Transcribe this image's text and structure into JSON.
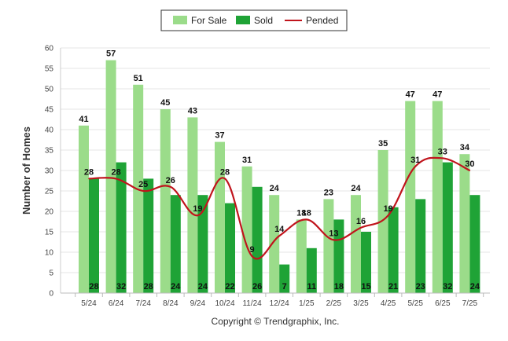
{
  "chart_data": {
    "type": "bar",
    "ylabel": "Number of Homes",
    "xlabel": "",
    "ylim": [
      0,
      60
    ],
    "yticks": [
      "0",
      "5",
      "10",
      "15",
      "20",
      "25",
      "30",
      "35",
      "40",
      "45",
      "50",
      "55",
      "60"
    ],
    "grid": true,
    "legend_position": "top-center",
    "categories": [
      "5/24",
      "6/24",
      "7/24",
      "8/24",
      "9/24",
      "10/24",
      "11/24",
      "12/24",
      "1/25",
      "2/25",
      "3/25",
      "4/25",
      "5/25",
      "6/25",
      "7/25"
    ],
    "series": [
      {
        "name": "For Sale",
        "kind": "bar",
        "color": "#9bdc8a",
        "values": [
          41,
          57,
          51,
          45,
          43,
          37,
          31,
          24,
          18,
          23,
          24,
          35,
          47,
          47,
          34
        ]
      },
      {
        "name": "Sold",
        "kind": "bar",
        "color": "#1fa336",
        "values": [
          28,
          32,
          28,
          24,
          24,
          22,
          26,
          7,
          11,
          18,
          15,
          21,
          23,
          32,
          24
        ]
      },
      {
        "name": "Pended",
        "kind": "line",
        "color": "#c0141c",
        "values": [
          28,
          28,
          25,
          26,
          19,
          28,
          9,
          14,
          18,
          13,
          16,
          19,
          31,
          33,
          30
        ]
      }
    ]
  },
  "copyright": "Copyright © Trendgraphix, Inc."
}
